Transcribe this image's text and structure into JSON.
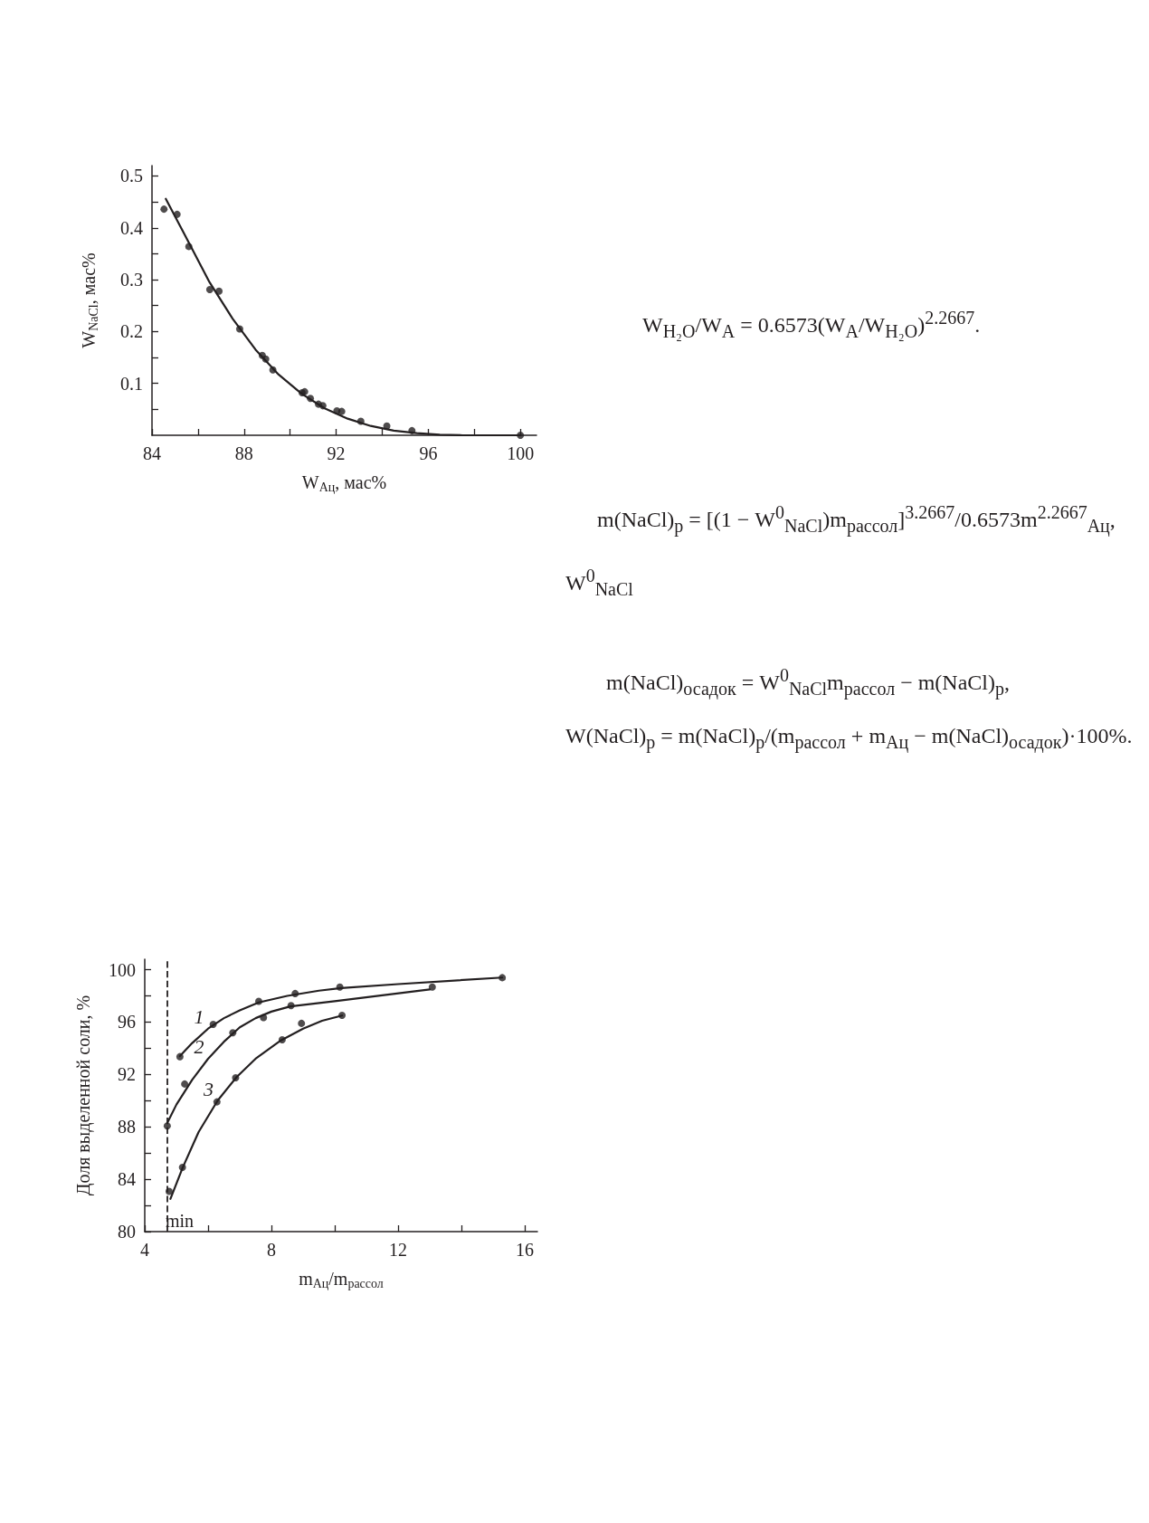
{
  "chart_data": [
    {
      "type": "scatter",
      "xlabel": "W$_{Ац}$, мас%",
      "ylabel": "W$_{NaCl}$, мас%",
      "xlim": [
        84,
        100.7
      ],
      "ylim": [
        0,
        0.52
      ],
      "xticks": [
        84,
        {
          "value": 86,
          "label": null
        },
        88,
        {
          "value": 90,
          "label": null
        },
        92,
        {
          "value": 94,
          "label": null
        },
        96,
        {
          "value": 98,
          "label": null
        },
        100
      ],
      "yticks": [
        {
          "value": 0.05,
          "label": null
        },
        0.1,
        {
          "value": 0.15,
          "label": null
        },
        0.2,
        {
          "value": 0.25,
          "label": null
        },
        0.3,
        {
          "value": 0.35,
          "label": null
        },
        0.4,
        {
          "value": 0.45,
          "label": null
        },
        0.5
      ],
      "series": [
        {
          "type": "scatter",
          "marker": "circle",
          "color": "#231f20",
          "x": [
            84.52,
            85.09,
            85.6,
            86.51,
            86.91,
            87.81,
            88.79,
            88.94,
            89.25,
            90.52,
            90.63,
            90.88,
            91.23,
            91.42,
            92.03,
            92.24,
            93.07,
            94.2,
            95.29,
            100
          ],
          "values": [
            0.436,
            0.426,
            0.364,
            0.281,
            0.278,
            0.205,
            0.154,
            0.147,
            0.126,
            0.082,
            0.084,
            0.071,
            0.06,
            0.057,
            0.047,
            0.046,
            0.027,
            0.018,
            0.009,
            0
          ]
        },
        {
          "type": "line",
          "marker": "none",
          "color": "#231f20",
          "x": [
            84.6,
            85.5,
            86.5,
            87.5,
            88.5,
            89.5,
            90.5,
            91.5,
            92.5,
            93.5,
            94.5,
            95.5,
            96.5,
            97.5,
            100
          ],
          "values": [
            0.456,
            0.38,
            0.295,
            0.225,
            0.165,
            0.117,
            0.08,
            0.052,
            0.032,
            0.018,
            0.009,
            0.004,
            0.001,
            0,
            0
          ]
        }
      ]
    },
    {
      "type": "scatter",
      "xlabel": "m$_{Ац}$/m$_{рассол}$",
      "ylabel": "Доля выделенной соли, %",
      "xlim": [
        4,
        16.4
      ],
      "ylim": [
        80,
        100.8
      ],
      "xticks": [
        4,
        {
          "value": 6,
          "label": null
        },
        8,
        {
          "value": 10,
          "label": null
        },
        12,
        {
          "value": 14,
          "label": null
        },
        16
      ],
      "yticks": [
        80,
        {
          "value": 82,
          "label": null
        },
        84,
        {
          "value": 86,
          "label": null
        },
        88,
        {
          "value": 90,
          "label": null
        },
        92,
        {
          "value": 94,
          "label": null
        },
        96,
        {
          "value": 98,
          "label": null
        },
        100
      ],
      "ref_lines": [
        {
          "axis": "x",
          "value": 4.7,
          "label": "min",
          "line_style": "dashed",
          "color": "#231f20"
        }
      ],
      "series": [
        {
          "type": "scatter",
          "marker": "circle",
          "color": "#231f20",
          "x": [
            5.11,
            6.16,
            7.6,
            8.75,
            10.16,
            15.29
          ],
          "values": [
            93.36,
            95.83,
            97.59,
            98.18,
            98.68,
            99.39
          ]
        },
        {
          "type": "line",
          "name": "1",
          "marker": "none",
          "color": "#231f20",
          "x": [
            5.11,
            5.5,
            6.0,
            6.5,
            7.0,
            7.6,
            8.5,
            9.5,
            10.2,
            12,
            15.29
          ],
          "values": [
            93.4,
            94.4,
            95.5,
            96.3,
            96.9,
            97.5,
            98.0,
            98.4,
            98.6,
            98.9,
            99.4
          ]
        },
        {
          "type": "scatter",
          "marker": "circle",
          "color": "#231f20",
          "x": [
            4.71,
            5.26,
            6.78,
            7.75,
            8.62,
            13.08
          ],
          "values": [
            88.07,
            91.27,
            95.18,
            96.34,
            97.26,
            98.68
          ]
        },
        {
          "type": "line",
          "name": "2",
          "marker": "none",
          "color": "#231f20",
          "x": [
            4.71,
            5.0,
            5.5,
            6.0,
            6.5,
            7.0,
            7.5,
            8.0,
            8.6,
            10,
            13.0
          ],
          "values": [
            88.3,
            89.7,
            91.6,
            93.2,
            94.5,
            95.6,
            96.3,
            96.8,
            97.2,
            97.6,
            98.5
          ]
        },
        {
          "type": "scatter",
          "marker": "circle",
          "color": "#231f20",
          "x": [
            4.77,
            5.19,
            6.28,
            6.87,
            8.34,
            8.95,
            10.23
          ],
          "values": [
            83.07,
            84.91,
            89.91,
            91.75,
            94.65,
            95.9,
            96.51
          ]
        },
        {
          "type": "line",
          "name": "3",
          "marker": "none",
          "color": "#231f20",
          "x": [
            4.81,
            5.2,
            5.7,
            6.3,
            6.9,
            7.5,
            8.3,
            9.0,
            9.6,
            10.23
          ],
          "values": [
            82.5,
            84.9,
            87.6,
            90.0,
            91.8,
            93.2,
            94.6,
            95.5,
            96.1,
            96.5
          ]
        }
      ]
    },
    {
      "type": "other",
      "annotations": [
        "W$_{H₂O}$/W$_{A}$ = 0.6573(W$_{A}$/W$_{H₂O}$)$^{2.2667}$.",
        "m(NaCl)$_{р}$ = [(1 − W$^{0}$$_{NaCl}$)m$_{рассол}$]$^{3.2667}$/0.6573m$^{2.2667}$$_{Ац}$,",
        "W$^{0}$$_{NaCl}$",
        "m(NaCl)$_{осадок}$ = W$^{0}$$_{NaCl}$m$_{рассол}$ − m(NaCl)$_{р}$,",
        "W(NaCl)$_{р}$ = m(NaCl)$_{р}$/(m$_{рассол}$ + m$_{Ац}$ − m(NaCl)$_{осадок}$)·100%."
      ]
    }
  ]
}
